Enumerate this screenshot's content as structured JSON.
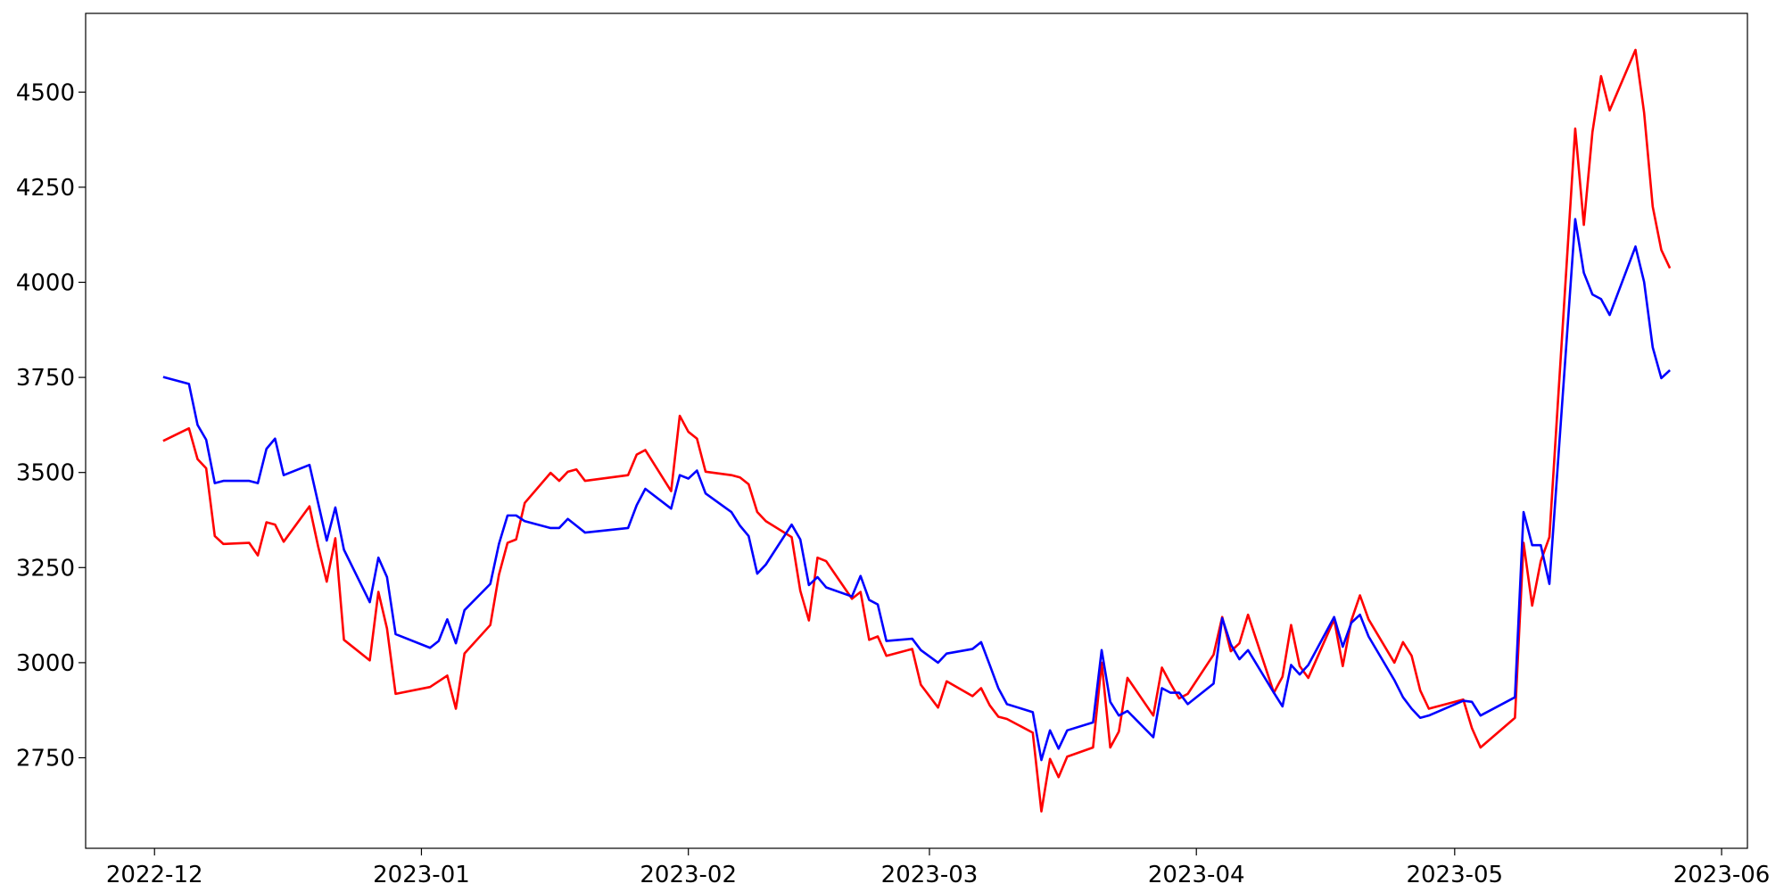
{
  "chart_data": {
    "type": "line",
    "x": [
      "2022-12-02",
      "2022-12-05",
      "2022-12-06",
      "2022-12-07",
      "2022-12-08",
      "2022-12-09",
      "2022-12-12",
      "2022-12-13",
      "2022-12-14",
      "2022-12-15",
      "2022-12-16",
      "2022-12-19",
      "2022-12-20",
      "2022-12-21",
      "2022-12-22",
      "2022-12-23",
      "2022-12-26",
      "2022-12-27",
      "2022-12-28",
      "2022-12-29",
      "2023-01-02",
      "2023-01-03",
      "2023-01-04",
      "2023-01-05",
      "2023-01-06",
      "2023-01-09",
      "2023-01-10",
      "2023-01-11",
      "2023-01-12",
      "2023-01-13",
      "2023-01-16",
      "2023-01-17",
      "2023-01-18",
      "2023-01-19",
      "2023-01-20",
      "2023-01-25",
      "2023-01-26",
      "2023-01-27",
      "2023-01-30",
      "2023-01-31",
      "2023-02-01",
      "2023-02-02",
      "2023-02-03",
      "2023-02-06",
      "2023-02-07",
      "2023-02-08",
      "2023-02-09",
      "2023-02-10",
      "2023-02-13",
      "2023-02-14",
      "2023-02-15",
      "2023-02-16",
      "2023-02-17",
      "2023-02-20",
      "2023-02-21",
      "2023-02-22",
      "2023-02-23",
      "2023-02-24",
      "2023-02-27",
      "2023-02-28",
      "2023-03-02",
      "2023-03-03",
      "2023-03-06",
      "2023-03-07",
      "2023-03-08",
      "2023-03-09",
      "2023-03-10",
      "2023-03-13",
      "2023-03-14",
      "2023-03-15",
      "2023-03-16",
      "2023-03-17",
      "2023-03-20",
      "2023-03-21",
      "2023-03-22",
      "2023-03-23",
      "2023-03-24",
      "2023-03-27",
      "2023-03-28",
      "2023-03-29",
      "2023-03-30",
      "2023-03-31",
      "2023-04-03",
      "2023-04-04",
      "2023-04-05",
      "2023-04-06",
      "2023-04-07",
      "2023-04-10",
      "2023-04-11",
      "2023-04-12",
      "2023-04-13",
      "2023-04-14",
      "2023-04-17",
      "2023-04-18",
      "2023-04-19",
      "2023-04-20",
      "2023-04-21",
      "2023-04-24",
      "2023-04-25",
      "2023-04-26",
      "2023-04-27",
      "2023-04-28",
      "2023-05-02",
      "2023-05-03",
      "2023-05-04",
      "2023-05-08",
      "2023-05-09",
      "2023-05-10",
      "2023-05-11",
      "2023-05-12",
      "2023-05-15",
      "2023-05-16",
      "2023-05-17",
      "2023-05-18",
      "2023-05-19",
      "2023-05-22",
      "2023-05-23",
      "2023-05-24",
      "2023-05-25",
      "2023-05-26"
    ],
    "series": [
      {
        "color": "#ff0000",
        "values": [
          3583,
          3616,
          3535,
          3511,
          3333,
          3312,
          3315,
          3282,
          3369,
          3363,
          3318,
          3411,
          3306,
          3213,
          3327,
          3060,
          3006,
          3186,
          3090,
          2918,
          2936,
          2951,
          2966,
          2879,
          3024,
          3099,
          3231,
          3315,
          3324,
          3420,
          3499,
          3478,
          3502,
          3508,
          3478,
          3493,
          3547,
          3559,
          3451,
          3649,
          3607,
          3589,
          3502,
          3493,
          3487,
          3469,
          3396,
          3372,
          3330,
          3189,
          3111,
          3276,
          3267,
          3168,
          3186,
          3060,
          3069,
          3018,
          3036,
          2942,
          2882,
          2951,
          2912,
          2933,
          2888,
          2858,
          2852,
          2816,
          2609,
          2747,
          2699,
          2753,
          2777,
          3000,
          2777,
          2819,
          2960,
          2861,
          2987,
          2945,
          2906,
          2918,
          3021,
          3120,
          3030,
          3051,
          3126,
          2921,
          2963,
          3099,
          2991,
          2960,
          3114,
          2991,
          3111,
          3177,
          3114,
          3000,
          3054,
          3018,
          2927,
          2879,
          2903,
          2828,
          2777,
          2855,
          3315,
          3150,
          3267,
          3330,
          4404,
          4151,
          4395,
          4542,
          4452,
          4611,
          4446,
          4199,
          4085,
          4037
        ]
      },
      {
        "color": "#0000ff",
        "values": [
          3751,
          3733,
          3625,
          3586,
          3472,
          3478,
          3478,
          3472,
          3562,
          3589,
          3493,
          3520,
          3420,
          3321,
          3408,
          3297,
          3159,
          3276,
          3225,
          3075,
          3039,
          3057,
          3114,
          3051,
          3138,
          3207,
          3312,
          3387,
          3387,
          3372,
          3354,
          3354,
          3378,
          3360,
          3342,
          3354,
          3414,
          3457,
          3405,
          3493,
          3484,
          3505,
          3445,
          3396,
          3360,
          3333,
          3234,
          3258,
          3363,
          3324,
          3204,
          3225,
          3198,
          3174,
          3228,
          3165,
          3153,
          3057,
          3063,
          3033,
          3000,
          3024,
          3036,
          3054,
          2994,
          2933,
          2891,
          2870,
          2744,
          2822,
          2774,
          2822,
          2843,
          3033,
          2897,
          2861,
          2873,
          2804,
          2933,
          2921,
          2921,
          2891,
          2945,
          3117,
          3048,
          3009,
          3033,
          2921,
          2885,
          2994,
          2969,
          2994,
          3120,
          3042,
          3105,
          3126,
          3069,
          2954,
          2909,
          2879,
          2855,
          2861,
          2900,
          2897,
          2861,
          2909,
          3396,
          3309,
          3309,
          3207,
          4166,
          4025,
          3968,
          3956,
          3914,
          4094,
          4001,
          3829,
          3748,
          3769
        ]
      }
    ],
    "xlim": [
      "2022-11-23",
      "2023-06-04"
    ],
    "xticks": [
      {
        "value": "2022-12-01",
        "label": "2022-12"
      },
      {
        "value": "2023-01-01",
        "label": "2023-01"
      },
      {
        "value": "2023-02-01",
        "label": "2023-02"
      },
      {
        "value": "2023-03-01",
        "label": "2023-03"
      },
      {
        "value": "2023-04-01",
        "label": "2023-04"
      },
      {
        "value": "2023-05-01",
        "label": "2023-05"
      },
      {
        "value": "2023-06-01",
        "label": "2023-06"
      }
    ],
    "ylim": [
      2512,
      4707
    ],
    "yticks": [
      2750,
      3000,
      3250,
      3500,
      3750,
      4000,
      4250,
      4500
    ],
    "grid": false
  }
}
